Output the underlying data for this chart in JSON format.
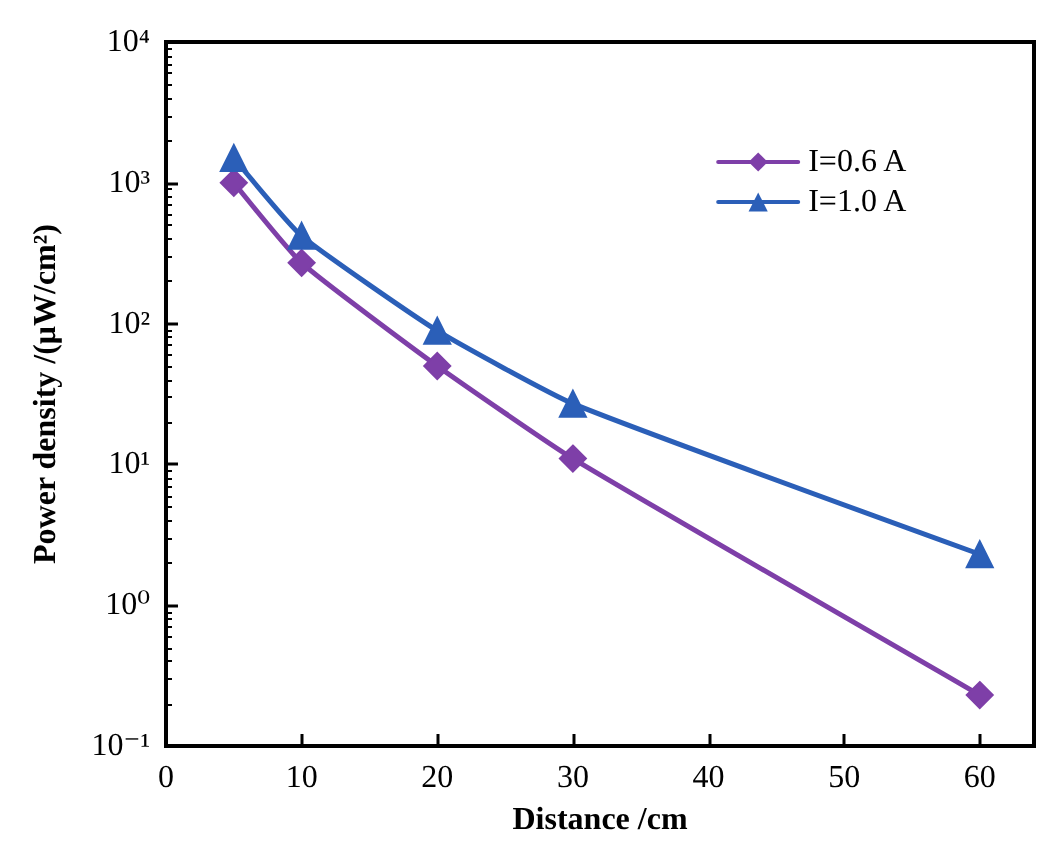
{
  "chart_data": {
    "type": "line",
    "xlabel": "Distance /cm",
    "ylabel": "Power density /(μW/cm²)",
    "x": [
      5,
      10,
      20,
      30,
      60
    ],
    "series": [
      {
        "name": "I=0.6 A",
        "color": "#7e3fa8",
        "marker": "diamond",
        "values": [
          1000,
          270,
          50,
          11,
          0.23
        ]
      },
      {
        "name": "I=1.0 A",
        "color": "#2b5fb8",
        "marker": "triangle",
        "values": [
          1500,
          420,
          89,
          27,
          2.3
        ]
      }
    ],
    "log": "y",
    "xlim": [
      0,
      64
    ],
    "xticks": [
      0,
      10,
      20,
      30,
      40,
      50,
      60
    ],
    "ylim": [
      0.1,
      10000
    ],
    "yticks": [
      {
        "value": 0.1,
        "label": "10⁻¹"
      },
      {
        "value": 1,
        "label": "10⁰"
      },
      {
        "value": 10,
        "label": "10¹"
      },
      {
        "value": 100,
        "label": "10²"
      },
      {
        "value": 1000,
        "label": "10³"
      },
      {
        "value": 10000,
        "label": "10⁴"
      }
    ],
    "grid": false,
    "legend": "top right",
    "line_style": "solid"
  }
}
